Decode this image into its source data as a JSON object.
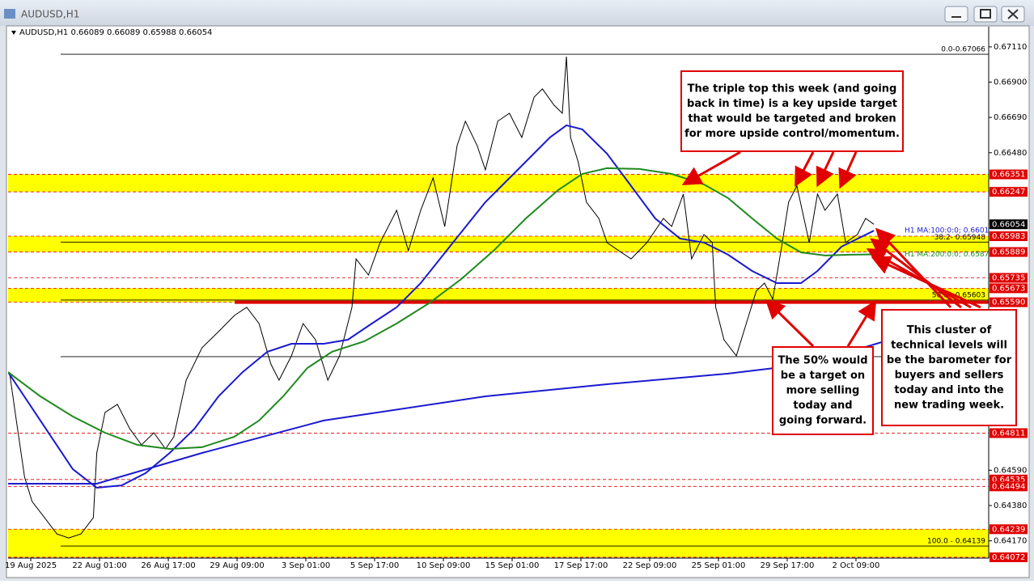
{
  "window_title": "AUDUSD,H1",
  "chart_data": {
    "type": "line",
    "header": "AUDUSD,H1  0.66089 0.66089 0.65988 0.66054",
    "xlim": [
      -0.33,
      13.93
    ],
    "ylim": [
      0.64067,
      0.6723
    ],
    "xticks": [
      {
        "value": 0,
        "label": "19 Aug 2025"
      },
      {
        "value": 1,
        "label": "22 Aug 01:00"
      },
      {
        "value": 2,
        "label": "26 Aug 17:00"
      },
      {
        "value": 3,
        "label": "29 Aug 09:00"
      },
      {
        "value": 4,
        "label": "3 Sep 01:00"
      },
      {
        "value": 5,
        "label": "5 Sep 17:00"
      },
      {
        "value": 6,
        "label": "10 Sep 09:00"
      },
      {
        "value": 7,
        "label": "15 Sep 01:00"
      },
      {
        "value": 8,
        "label": "17 Sep 17:00"
      },
      {
        "value": 9,
        "label": "22 Sep 09:00"
      },
      {
        "value": 10,
        "label": "25 Sep 01:00"
      },
      {
        "value": 11,
        "label": "29 Sep 17:00"
      },
      {
        "value": 12,
        "label": "2 Oct 09:00"
      }
    ],
    "yticks": [
      {
        "value": 0.6711,
        "label": "0.67110"
      },
      {
        "value": 0.669,
        "label": "0.66900"
      },
      {
        "value": 0.6669,
        "label": "0.66690"
      },
      {
        "value": 0.6648,
        "label": "0.66480"
      },
      {
        "value": 0.6459,
        "label": "0.64590"
      },
      {
        "value": 0.6438,
        "label": "0.64380"
      },
      {
        "value": 0.6417,
        "label": "0.64170"
      }
    ],
    "series": [
      {
        "color": "#000000",
        "x": [
          -0.31,
          -0.21,
          -0.09,
          0.02,
          0.2,
          0.38,
          0.55,
          0.73,
          0.91,
          0.96,
          1.08,
          1.26,
          1.44,
          1.61,
          1.79,
          1.96,
          2.08,
          2.26,
          2.49,
          2.73,
          2.96,
          3.14,
          3.32,
          3.49,
          3.61,
          3.79,
          3.96,
          4.14,
          4.32,
          4.49,
          4.67,
          4.73,
          4.91,
          5.08,
          5.32,
          5.49,
          5.67,
          5.85,
          6.02,
          6.2,
          6.32,
          6.49,
          6.61,
          6.79,
          6.96,
          7.14,
          7.32,
          7.44,
          7.61,
          7.73,
          7.79,
          7.85,
          7.96,
          8.08,
          8.26,
          8.38,
          8.55,
          8.73,
          8.96,
          9.2,
          9.32,
          9.49,
          9.61,
          9.79,
          9.91,
          9.96,
          10.08,
          10.26,
          10.44,
          10.55,
          10.67,
          10.79,
          10.91,
          11.02,
          11.14,
          11.32,
          11.44,
          11.55,
          11.73,
          11.85,
          12.02,
          12.14,
          12.26
        ],
        "values": [
          0.65174,
          0.64886,
          0.64549,
          0.64404,
          0.64308,
          0.64211,
          0.64187,
          0.64211,
          0.64308,
          0.64693,
          0.64934,
          0.64982,
          0.64837,
          0.64741,
          0.64813,
          0.64717,
          0.64789,
          0.65126,
          0.65319,
          0.65415,
          0.65511,
          0.6556,
          0.65463,
          0.65223,
          0.65126,
          0.65271,
          0.65463,
          0.65367,
          0.65126,
          0.65271,
          0.6556,
          0.65848,
          0.65752,
          0.65945,
          0.66137,
          0.65897,
          0.66137,
          0.6633,
          0.66041,
          0.66523,
          0.66667,
          0.66523,
          0.66378,
          0.66667,
          0.66715,
          0.66571,
          0.66811,
          0.6686,
          0.66763,
          0.66715,
          0.67052,
          0.66571,
          0.66426,
          0.66186,
          0.66089,
          0.65945,
          0.65897,
          0.65848,
          0.65945,
          0.66089,
          0.66041,
          0.66234,
          0.65848,
          0.65993,
          0.65945,
          0.6556,
          0.65367,
          0.65271,
          0.65511,
          0.65656,
          0.65704,
          0.65608,
          0.65897,
          0.66186,
          0.66282,
          0.65945,
          0.66234,
          0.66137,
          0.66234,
          0.65945,
          0.65993,
          0.66089,
          0.66054
        ]
      },
      {
        "name": "H1 MA:100:0:0; 0.66016",
        "color": "#1a1ad0",
        "x": [
          -0.33,
          0.14,
          0.61,
          0.96,
          1.32,
          1.67,
          2.02,
          2.38,
          2.73,
          3.08,
          3.44,
          3.79,
          4.26,
          4.61,
          4.96,
          5.32,
          5.67,
          6.14,
          6.61,
          7.08,
          7.55,
          7.79,
          8.02,
          8.38,
          8.73,
          9.08,
          9.44,
          9.79,
          10.14,
          10.49,
          10.85,
          11.2,
          11.44,
          11.79,
          12.26
        ],
        "values": [
          0.65174,
          0.64886,
          0.64597,
          0.64486,
          0.645,
          0.64573,
          0.64693,
          0.64837,
          0.6503,
          0.65174,
          0.65295,
          0.65343,
          0.65343,
          0.65367,
          0.65463,
          0.6556,
          0.65704,
          0.65945,
          0.66186,
          0.66378,
          0.66571,
          0.66643,
          0.66619,
          0.66474,
          0.66282,
          0.66089,
          0.65969,
          0.65945,
          0.65873,
          0.65776,
          0.65704,
          0.65704,
          0.65776,
          0.65921,
          0.66016
        ]
      },
      {
        "name": "H1 MA:200:0:0; 0.65875",
        "color": "#1e8a1e",
        "x": [
          -0.33,
          0.14,
          0.61,
          1.08,
          1.55,
          2.02,
          2.49,
          2.96,
          3.32,
          3.67,
          4.02,
          4.38,
          4.85,
          5.32,
          5.79,
          6.26,
          6.73,
          7.2,
          7.67,
          8.02,
          8.38,
          8.85,
          9.32,
          9.79,
          10.14,
          10.49,
          10.85,
          11.2,
          11.55,
          11.91,
          12.26
        ],
        "values": [
          0.65174,
          0.6503,
          0.6491,
          0.64813,
          0.64741,
          0.64717,
          0.64727,
          0.64789,
          0.64886,
          0.6503,
          0.65198,
          0.65295,
          0.65357,
          0.65463,
          0.65584,
          0.65728,
          0.65897,
          0.66089,
          0.66258,
          0.66354,
          0.66388,
          0.66383,
          0.66354,
          0.66291,
          0.6621,
          0.66089,
          0.65969,
          0.65887,
          0.65868,
          0.65873,
          0.65875
        ]
      },
      {
        "color": "#1a1ad0",
        "x": [
          -0.33,
          0.96,
          2.49,
          4.26,
          6.61,
          8.38,
          10.14,
          11.32,
          12.49,
          13.93
        ],
        "values": [
          0.6451,
          0.6451,
          0.64693,
          0.64886,
          0.6503,
          0.65102,
          0.65165,
          0.65223,
          0.65367,
          0.65415
        ]
      }
    ],
    "zones": [
      [
        0.66247,
        0.66351
      ],
      [
        0.65889,
        0.65983
      ],
      [
        0.6559,
        0.65673
      ],
      [
        0.64072,
        0.64239
      ]
    ],
    "zone_color": "#ffff00",
    "support_line": 0.6559,
    "levels": [
      0.66351,
      0.66247,
      0.65983,
      0.65889,
      0.65735,
      0.65673,
      {
        "value": 0.6559,
        "label": "0.65590"
      },
      0.64811,
      0.64535,
      0.64494,
      0.64239,
      0.64072
    ],
    "level_color": "#e00000",
    "current_price": 0.66054,
    "fib": [
      {
        "value": 0.67066,
        "label": "0.0-0.67066"
      },
      {
        "value": 0.65948,
        "label": "38.2- 0.65948"
      },
      {
        "value": 0.65603,
        "label": "50.0 - 0.65603"
      },
      {
        "value": 0.64139,
        "label": "100.0 - 0.64139"
      }
    ],
    "fib_line": 0.65266,
    "annotations": [
      {
        "lines": [
          "The triple top this week (and going",
          "back in time) is a key upside target",
          "that would be targeted and broken",
          "for more upside control/momentum."
        ]
      },
      {
        "lines": [
          "The 50% would",
          "be a target on",
          "more selling",
          "today and",
          "going forward."
        ]
      },
      {
        "lines": [
          "This cluster of",
          "technical levels will",
          "be the barometer for",
          "buyers and sellers",
          "today and into the",
          "new trading week."
        ]
      }
    ]
  }
}
